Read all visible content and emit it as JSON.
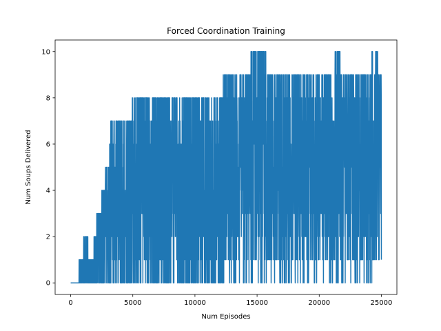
{
  "chart_data": {
    "type": "line",
    "title": "Forced Coordination Training",
    "xlabel": "Num Episodes",
    "ylabel": "Num Soups Delivered",
    "xlim": [
      -1250,
      26250
    ],
    "ylim": [
      -0.5,
      10.5
    ],
    "x_ticks": [
      0,
      5000,
      10000,
      15000,
      20000,
      25000
    ],
    "x_tick_labels": [
      "0",
      "5000",
      "10000",
      "15000",
      "20000",
      "25000"
    ],
    "y_ticks": [
      0,
      2,
      4,
      6,
      8,
      10
    ],
    "y_tick_labels": [
      "0",
      "2",
      "4",
      "6",
      "8",
      "10"
    ],
    "grid": false,
    "color": "#1f77b4",
    "series": [
      {
        "x_range": [
          0,
          25000
        ],
        "envelope": {
          "x": [
            0,
            600,
            700,
            1000,
            1100,
            1300,
            1500,
            1800,
            2100,
            2400,
            2600,
            3000,
            3200,
            4800,
            5100,
            6000,
            7000,
            8000,
            9000,
            10000,
            11000,
            12000,
            12500,
            13000,
            14000,
            15000,
            15500,
            16000,
            17000,
            18000,
            19000,
            20000,
            21000,
            21400,
            22000,
            23000,
            24000,
            24400,
            25000
          ],
          "upper": [
            0,
            0,
            1,
            1,
            2,
            2,
            1,
            1,
            3,
            3,
            4,
            5,
            7,
            7,
            8,
            8,
            8,
            8,
            8,
            8,
            8,
            8,
            9,
            9,
            9,
            10,
            10,
            9,
            9,
            9,
            9,
            9,
            9,
            10,
            9,
            9,
            9,
            10,
            9
          ],
          "typical_low": [
            0,
            0,
            0,
            0,
            0,
            0,
            0,
            0,
            0,
            0,
            0,
            0,
            0,
            0,
            0,
            0,
            0,
            0,
            0,
            0,
            0,
            0,
            1,
            1,
            1,
            1,
            1,
            1,
            1,
            1,
            1,
            1,
            1,
            1,
            1,
            1,
            1,
            1,
            1
          ],
          "floor": [
            0,
            0,
            0,
            0,
            0,
            0,
            0,
            0,
            0,
            0,
            0,
            0,
            0,
            0,
            0,
            0,
            0,
            0,
            0,
            0,
            0,
            0,
            0,
            0,
            0,
            0,
            0,
            0,
            0,
            0,
            0,
            0,
            0,
            0,
            0,
            0,
            0,
            0,
            0
          ]
        }
      }
    ]
  }
}
